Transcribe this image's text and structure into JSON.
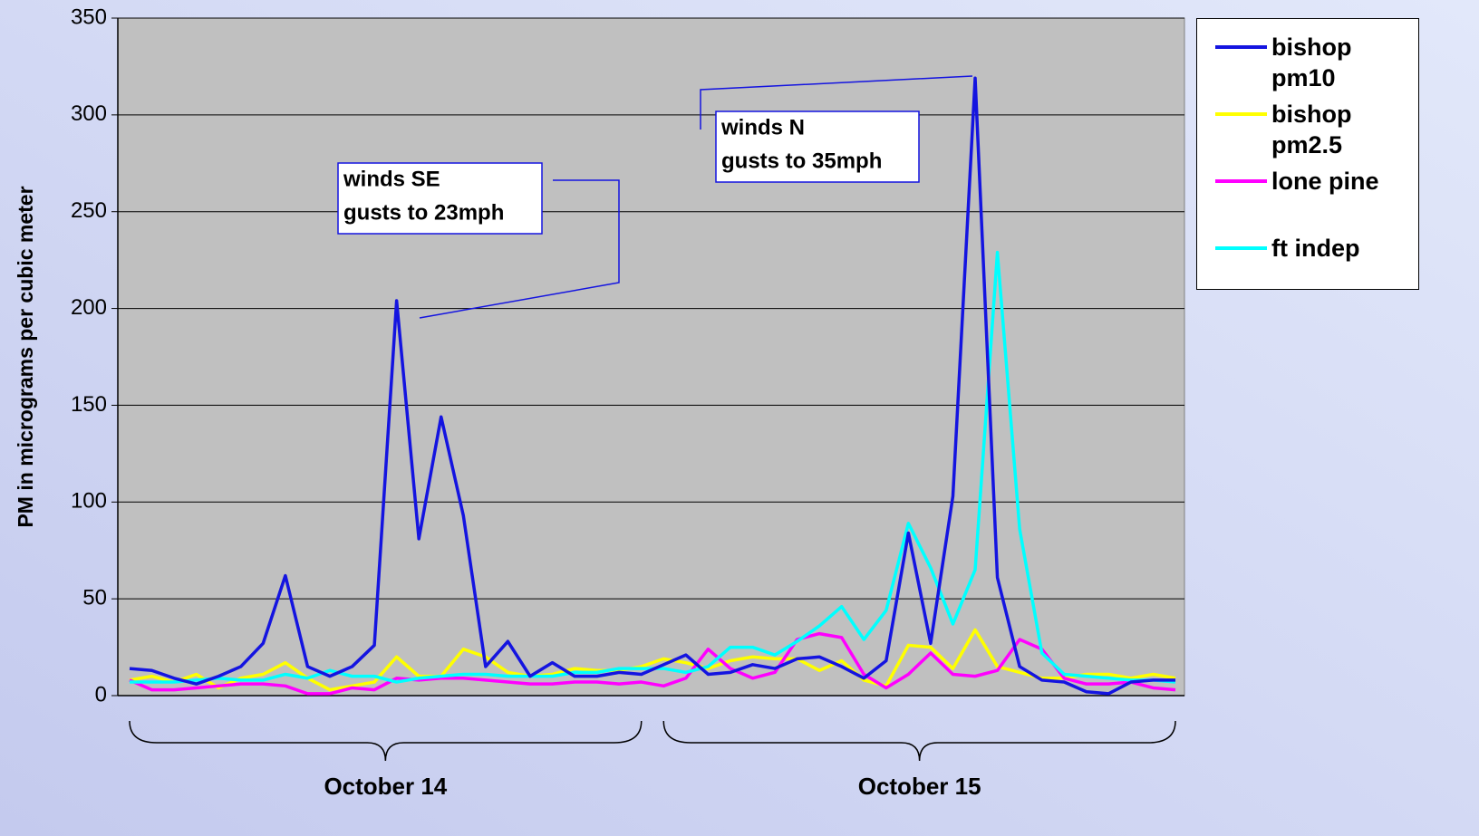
{
  "chart_data": {
    "type": "line",
    "y_label": "PM in micrograms per cubic meter",
    "categories": [
      null,
      null,
      null,
      null,
      null,
      null,
      null,
      null,
      null,
      null,
      null,
      null,
      null,
      null,
      null,
      null,
      null,
      null,
      null,
      null,
      null,
      null,
      null,
      null,
      null,
      null,
      null,
      null,
      null,
      null,
      null,
      null,
      null,
      null,
      null,
      null,
      null,
      null,
      null,
      null,
      null,
      null,
      null,
      null,
      null,
      null,
      null,
      null
    ],
    "group_labels": [
      "October 14",
      "October 15"
    ],
    "series": [
      {
        "name": "bishop pm10",
        "color": "#1414e0",
        "values": [
          14,
          13,
          9,
          6,
          10,
          15,
          27,
          62,
          15,
          10,
          15,
          26,
          204,
          81,
          144,
          93,
          15,
          28,
          10,
          17,
          10,
          10,
          12,
          11,
          16,
          21,
          11,
          12,
          16,
          14,
          19,
          20,
          15,
          9,
          18,
          84,
          27,
          103,
          319,
          61,
          15,
          8,
          7,
          2,
          1,
          7,
          8,
          8
        ]
      },
      {
        "name": "bishop pm2.5",
        "color": "#ffff00",
        "values": [
          8,
          10,
          7,
          11,
          4,
          9,
          11,
          17,
          9,
          3,
          5,
          7,
          20,
          10,
          10,
          24,
          20,
          12,
          10,
          11,
          14,
          13,
          13,
          15,
          19,
          17,
          14,
          18,
          20,
          19,
          19,
          13,
          18,
          8,
          5,
          26,
          25,
          14,
          34,
          15,
          12,
          9,
          9,
          11,
          11,
          9,
          11,
          9
        ]
      },
      {
        "name": "lone pine",
        "color": "#ff00ff",
        "values": [
          8,
          3,
          3,
          4,
          5,
          6,
          6,
          5,
          1,
          1,
          4,
          3,
          9,
          8,
          9,
          9,
          8,
          7,
          6,
          6,
          7,
          7,
          6,
          7,
          5,
          9,
          24,
          14,
          9,
          12,
          29,
          32,
          30,
          11,
          4,
          11,
          22,
          11,
          10,
          13,
          29,
          24,
          9,
          6,
          6,
          7,
          4,
          3
        ]
      },
      {
        "name": "ft indep",
        "color": "#00ffff",
        "values": [
          7,
          7,
          7,
          8,
          9,
          8,
          8,
          11,
          9,
          13,
          10,
          10,
          7,
          9,
          10,
          11,
          11,
          10,
          10,
          10,
          12,
          12,
          14,
          14,
          14,
          12,
          15,
          25,
          25,
          21,
          28,
          36,
          46,
          29,
          44,
          89,
          66,
          37,
          65,
          229,
          86,
          22,
          11,
          10,
          9,
          8,
          8,
          7
        ]
      }
    ],
    "annotations": [
      {
        "lines": [
          "winds SE",
          "gusts to 23mph"
        ]
      },
      {
        "lines": [
          "winds N",
          "gusts to 35mph"
        ]
      }
    ],
    "ylim": [
      0,
      350
    ],
    "yticks": [
      0,
      50,
      100,
      150,
      200,
      250,
      300,
      350
    ],
    "grid": true,
    "legend": "right"
  }
}
